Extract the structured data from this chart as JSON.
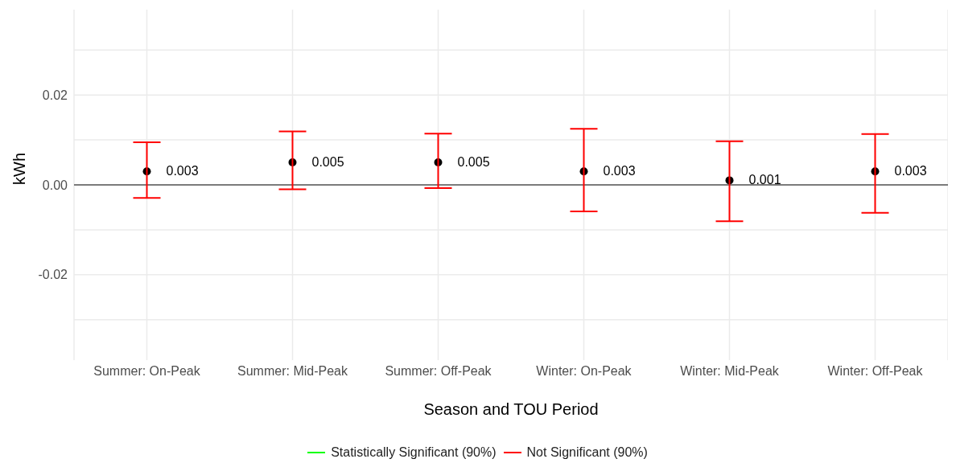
{
  "chart_data": {
    "type": "scatter",
    "xlabel": "Season and TOU Period",
    "ylabel": "kWh",
    "categories": [
      "Summer: On-Peak",
      "Summer: Mid-Peak",
      "Summer: Off-Peak",
      "Winter: On-Peak",
      "Winter: Mid-Peak",
      "Winter: Off-Peak"
    ],
    "series": [
      {
        "name": "Statistically Significant (90%)",
        "color": "#00ff00",
        "marker": "none",
        "values": [
          null,
          null,
          null,
          null,
          null,
          null
        ]
      },
      {
        "name": "Not Significant (90%)",
        "color": "#ff0000",
        "marker": "circle",
        "values": [
          0.003,
          0.005,
          0.005,
          0.003,
          0.001,
          0.003
        ],
        "colors": [
          "#000000",
          "#000000",
          "#000000",
          "#000000",
          "#000000",
          "#000000"
        ],
        "errors": [
          [
            -0.0029,
            0.0095
          ],
          [
            -0.001,
            0.0119
          ],
          [
            -0.0007,
            0.0114
          ],
          [
            -0.0059,
            0.0125
          ],
          [
            -0.0081,
            0.0097
          ],
          [
            -0.0062,
            0.0113
          ]
        ],
        "value_labels": [
          "0.003",
          "0.005",
          "0.005",
          "0.003",
          "0.001",
          "0.003"
        ]
      }
    ],
    "ylim": [
      -0.039,
      0.039
    ],
    "yticks": [
      {
        "value": -0.03,
        "label": null
      },
      {
        "value": -0.02,
        "label": "-0.02"
      },
      {
        "value": -0.01,
        "label": null
      },
      {
        "value": 0,
        "label": "0.00"
      },
      {
        "value": 0.01,
        "label": null
      },
      {
        "value": 0.02,
        "label": "0.02"
      },
      {
        "value": 0.03,
        "label": null
      }
    ],
    "ref_lines": [
      {
        "axis": "y",
        "value": 0,
        "color": "#555555"
      }
    ],
    "grid": true,
    "legend": "bottom"
  }
}
